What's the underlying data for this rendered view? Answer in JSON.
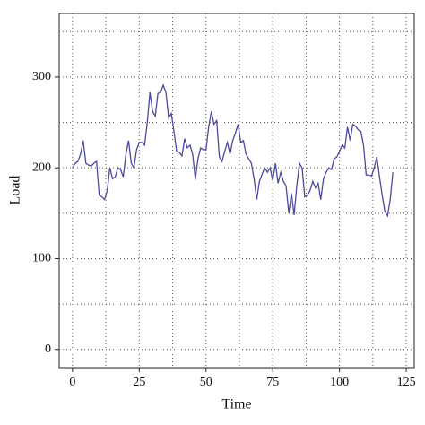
{
  "chart_data": {
    "type": "line",
    "xlabel": "Time",
    "ylabel": "Load",
    "x": [
      0,
      1,
      2,
      3,
      4,
      5,
      6,
      7,
      8,
      9,
      10,
      11,
      12,
      13,
      14,
      15,
      16,
      17,
      18,
      19,
      20,
      21,
      22,
      23,
      24,
      25,
      26,
      27,
      28,
      29,
      30,
      31,
      32,
      33,
      34,
      35,
      36,
      37,
      38,
      39,
      40,
      41,
      42,
      43,
      44,
      45,
      46,
      47,
      48,
      49,
      50,
      51,
      52,
      53,
      54,
      55,
      56,
      57,
      58,
      59,
      60,
      61,
      62,
      63,
      64,
      65,
      66,
      67,
      68,
      69,
      70,
      71,
      72,
      73,
      74,
      75,
      76,
      77,
      78,
      79,
      80,
      81,
      82,
      83,
      84,
      85,
      86,
      87,
      88,
      89,
      90,
      91,
      92,
      93,
      94,
      95,
      96,
      97,
      98,
      99,
      100,
      101,
      102,
      103,
      104,
      105,
      106,
      107,
      108,
      109,
      110,
      111,
      112,
      113,
      114,
      115,
      116,
      117,
      118,
      119,
      120
    ],
    "series": [
      {
        "name": "Load",
        "color": "#4a4a9c",
        "values": [
          200,
          205,
          207,
          215,
          230,
          205,
          203,
          202,
          205,
          207,
          170,
          168,
          165,
          175,
          200,
          188,
          190,
          200,
          198,
          190,
          215,
          230,
          205,
          200,
          220,
          228,
          228,
          225,
          250,
          283,
          262,
          257,
          282,
          283,
          291,
          283,
          255,
          260,
          240,
          218,
          217,
          213,
          232,
          222,
          225,
          215,
          187,
          210,
          222,
          220,
          220,
          245,
          262,
          248,
          252,
          212,
          207,
          218,
          228,
          215,
          230,
          238,
          248,
          228,
          230,
          215,
          210,
          205,
          188,
          165,
          185,
          193,
          200,
          195,
          200,
          186,
          205,
          183,
          195,
          185,
          180,
          150,
          172,
          148,
          180,
          205,
          200,
          168,
          170,
          175,
          185,
          178,
          183,
          165,
          188,
          195,
          200,
          198,
          210,
          212,
          218,
          225,
          222,
          245,
          230,
          248,
          246,
          242,
          240,
          225,
          192,
          192,
          191,
          200,
          212,
          190,
          170,
          152,
          147,
          165,
          195
        ]
      }
    ],
    "xlim": [
      -5,
      128
    ],
    "ylim": [
      -20,
      370
    ],
    "xticks": [
      0,
      25,
      50,
      75,
      100,
      125
    ],
    "yticks": [
      0,
      100,
      200,
      300
    ],
    "grid": true
  }
}
